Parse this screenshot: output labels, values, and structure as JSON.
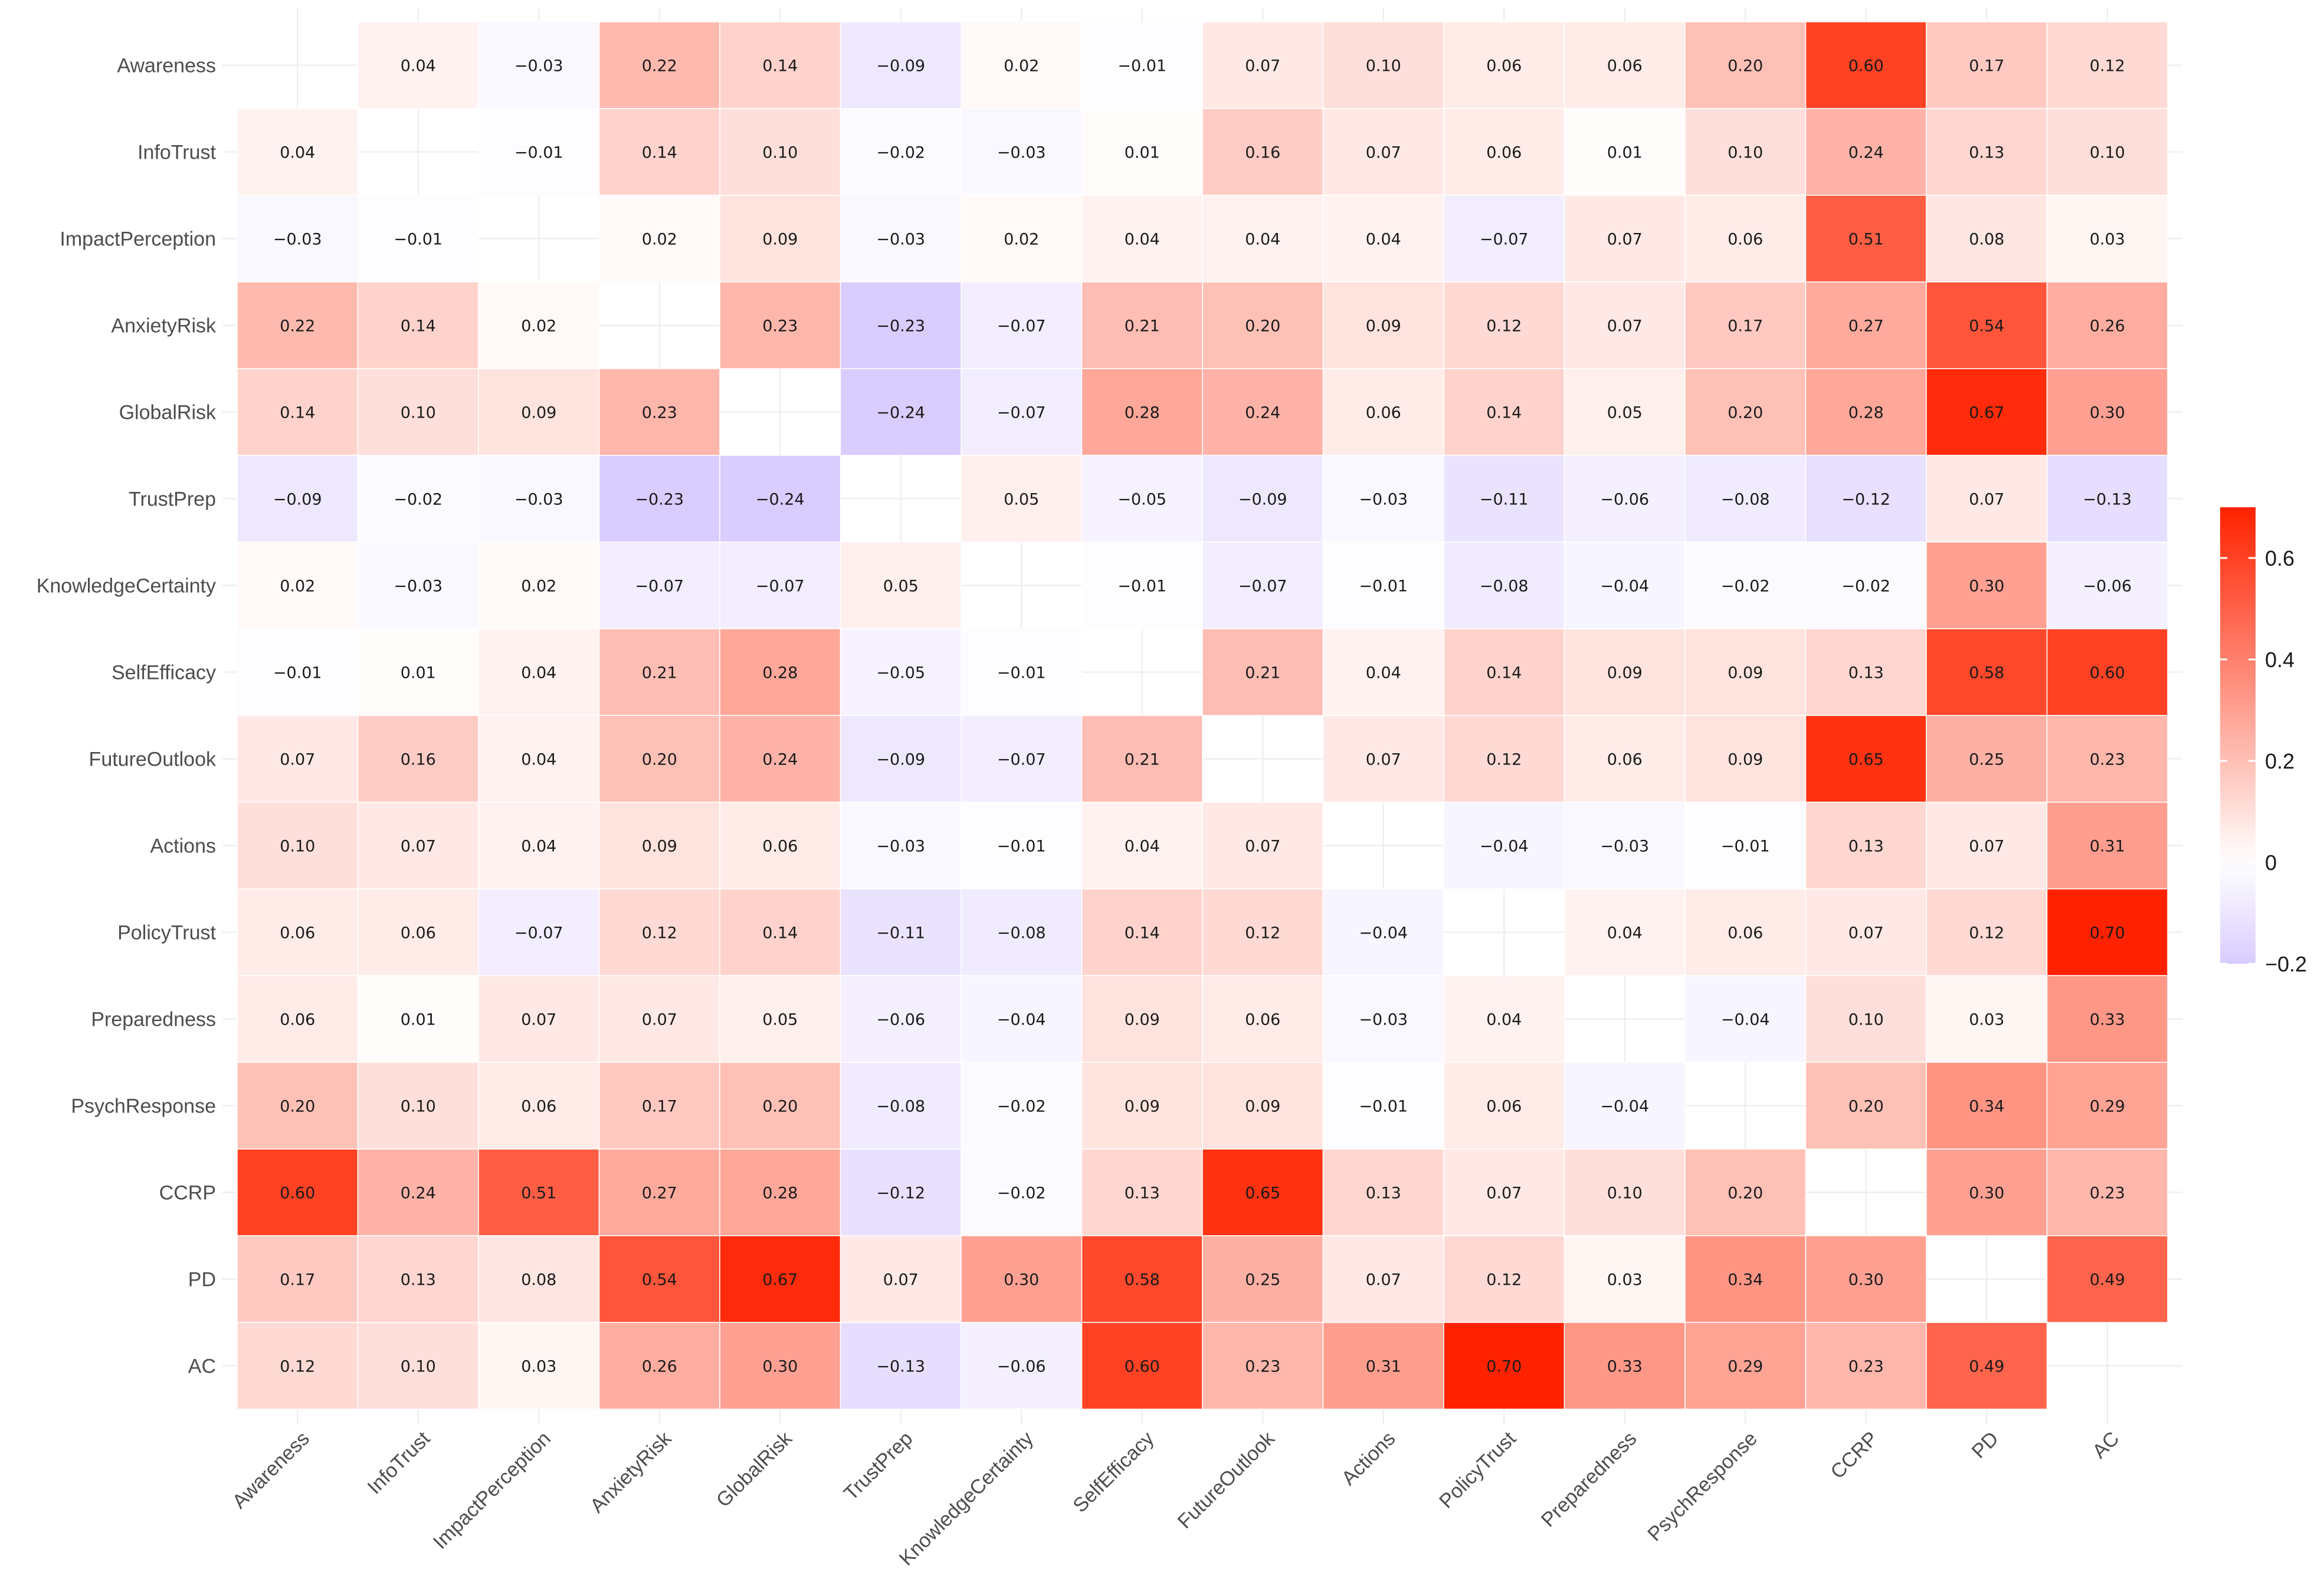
{
  "chart_data": {
    "type": "heatmap",
    "title": "",
    "xlabel": "",
    "ylabel": "",
    "variables": [
      "Awareness",
      "InfoTrust",
      "ImpactPerception",
      "AnxietyRisk",
      "GlobalRisk",
      "TrustPrep",
      "KnowledgeCertainty",
      "SelfEfficacy",
      "FutureOutlook",
      "Actions",
      "PolicyTrust",
      "Preparedness",
      "PsychResponse",
      "CCRP",
      "PD",
      "AC"
    ],
    "values": [
      [
        null,
        0.04,
        -0.03,
        0.22,
        0.14,
        -0.09,
        0.02,
        -0.01,
        0.07,
        0.1,
        0.06,
        0.06,
        0.2,
        0.6,
        0.17,
        0.12
      ],
      [
        0.04,
        null,
        -0.01,
        0.14,
        0.1,
        -0.02,
        -0.03,
        0.01,
        0.16,
        0.07,
        0.06,
        0.01,
        0.1,
        0.24,
        0.13,
        0.1
      ],
      [
        -0.03,
        -0.01,
        null,
        0.02,
        0.09,
        -0.03,
        0.02,
        0.04,
        0.04,
        0.04,
        -0.07,
        0.07,
        0.06,
        0.51,
        0.08,
        0.03
      ],
      [
        0.22,
        0.14,
        0.02,
        null,
        0.23,
        -0.23,
        -0.07,
        0.21,
        0.2,
        0.09,
        0.12,
        0.07,
        0.17,
        0.27,
        0.54,
        0.26
      ],
      [
        0.14,
        0.1,
        0.09,
        0.23,
        null,
        -0.24,
        -0.07,
        0.28,
        0.24,
        0.06,
        0.14,
        0.05,
        0.2,
        0.28,
        0.67,
        0.3
      ],
      [
        -0.09,
        -0.02,
        -0.03,
        -0.23,
        -0.24,
        null,
        0.05,
        -0.05,
        -0.09,
        -0.03,
        -0.11,
        -0.06,
        -0.08,
        -0.12,
        0.07,
        -0.13
      ],
      [
        0.02,
        -0.03,
        0.02,
        -0.07,
        -0.07,
        0.05,
        null,
        -0.01,
        -0.07,
        -0.01,
        -0.08,
        -0.04,
        -0.02,
        -0.02,
        0.3,
        -0.06
      ],
      [
        -0.01,
        0.01,
        0.04,
        0.21,
        0.28,
        -0.05,
        -0.01,
        null,
        0.21,
        0.04,
        0.14,
        0.09,
        0.09,
        0.13,
        0.58,
        0.6
      ],
      [
        0.07,
        0.16,
        0.04,
        0.2,
        0.24,
        -0.09,
        -0.07,
        0.21,
        null,
        0.07,
        0.12,
        0.06,
        0.09,
        0.65,
        0.25,
        0.23
      ],
      [
        0.1,
        0.07,
        0.04,
        0.09,
        0.06,
        -0.03,
        -0.01,
        0.04,
        0.07,
        null,
        -0.04,
        -0.03,
        -0.01,
        0.13,
        0.07,
        0.31
      ],
      [
        0.06,
        0.06,
        -0.07,
        0.12,
        0.14,
        -0.11,
        -0.08,
        0.14,
        0.12,
        -0.04,
        null,
        0.04,
        0.06,
        0.07,
        0.12,
        0.7
      ],
      [
        0.06,
        0.01,
        0.07,
        0.07,
        0.05,
        -0.06,
        -0.04,
        0.09,
        0.06,
        -0.03,
        0.04,
        null,
        -0.04,
        0.1,
        0.03,
        0.33
      ],
      [
        0.2,
        0.1,
        0.06,
        0.17,
        0.2,
        -0.08,
        -0.02,
        0.09,
        0.09,
        -0.01,
        0.06,
        -0.04,
        null,
        0.2,
        0.34,
        0.29
      ],
      [
        0.6,
        0.24,
        0.51,
        0.27,
        0.28,
        -0.12,
        -0.02,
        0.13,
        0.65,
        0.13,
        0.07,
        0.1,
        0.2,
        null,
        0.3,
        0.23
      ],
      [
        0.17,
        0.13,
        0.08,
        0.54,
        0.67,
        0.07,
        0.3,
        0.58,
        0.25,
        0.07,
        0.12,
        0.03,
        0.34,
        0.3,
        null,
        0.49
      ],
      [
        0.12,
        0.1,
        0.03,
        0.26,
        0.3,
        -0.13,
        -0.06,
        0.6,
        0.23,
        0.31,
        0.7,
        0.33,
        0.29,
        0.23,
        0.49,
        null
      ]
    ],
    "color_scale": {
      "min": -0.2,
      "max": 0.7,
      "low_color": "#d9ccff",
      "mid_color": "#ffffff",
      "high_color": "#ff2200",
      "ticks": [
        -0.2,
        0,
        0.2,
        0.4,
        0.6
      ],
      "tick_labels": [
        "−0.2",
        "0",
        "0.2",
        "0.4",
        "0.6"
      ]
    },
    "legend": "right",
    "grid": true
  }
}
